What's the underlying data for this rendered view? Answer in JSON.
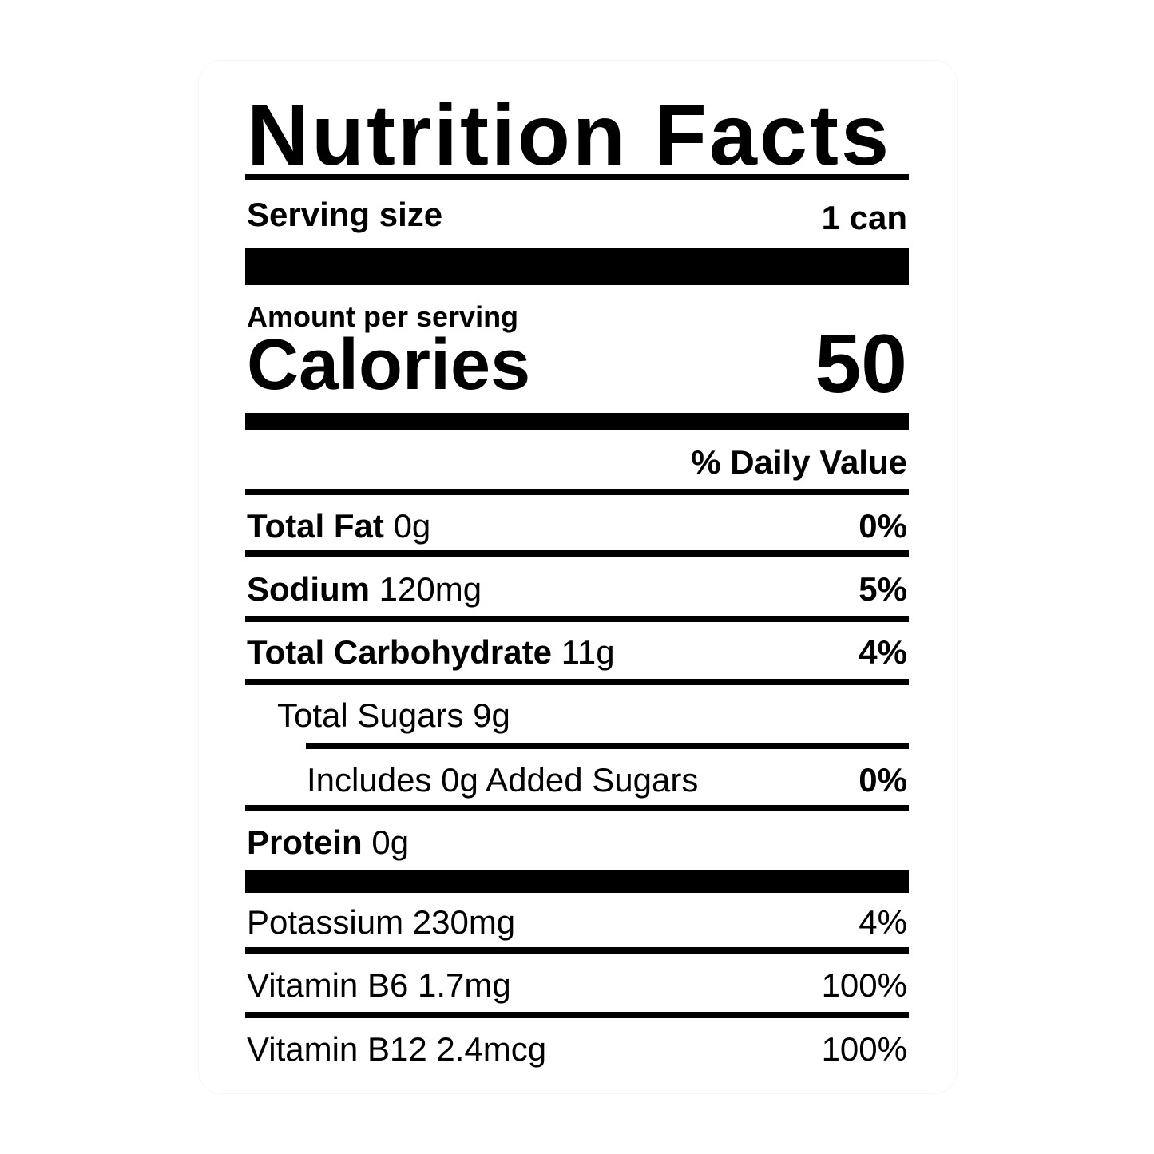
{
  "title": "Nutrition Facts",
  "serving": {
    "label": "Serving size",
    "value": "1 can"
  },
  "amount_label": "Amount per serving",
  "calories": {
    "label": "Calories",
    "value": 50
  },
  "daily_value_header": "% Daily Value",
  "rows": [
    {
      "name": "Total Fat",
      "amount": "0g",
      "dv": "0%"
    },
    {
      "name": "Sodium",
      "amount": "120mg",
      "dv": "5%"
    },
    {
      "name": "Total Carbohydrate",
      "amount": "11g",
      "dv": "4%"
    },
    {
      "name": "Total Sugars",
      "amount": "9g"
    },
    {
      "name": "Includes 0g Added Sugars",
      "dv": "0%"
    },
    {
      "name": "Protein",
      "amount": "0g"
    },
    {
      "name": "Potassium",
      "amount": "230mg",
      "dv": "4%"
    },
    {
      "name": "Vitamin B6",
      "amount": "1.7mg",
      "dv": "100%"
    },
    {
      "name": "Vitamin B12",
      "amount": "2.4mcg",
      "dv": "100%"
    }
  ]
}
